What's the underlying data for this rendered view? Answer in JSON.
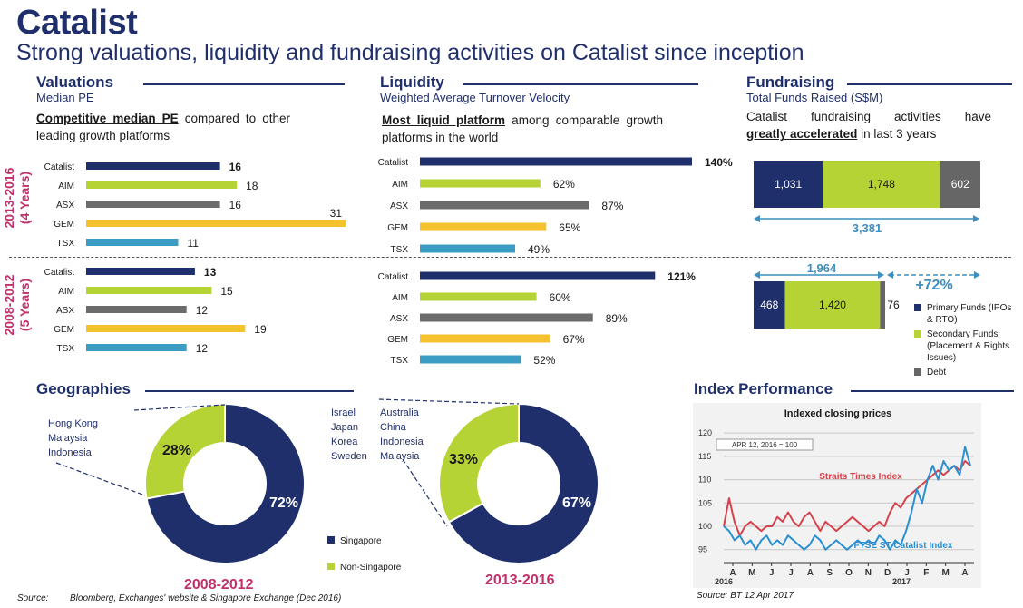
{
  "header": {
    "title": "Catalist",
    "subtitle": "Strong valuations, liquidity and fundraising activities on Catalist since inception"
  },
  "periods": {
    "recent": "2013-2016",
    "recent_years": "(4 Years)",
    "past": "2008-2012",
    "past_years": "(5 Years)"
  },
  "valuations": {
    "heading": "Valuations",
    "sub": "Median PE",
    "desc_bold": "Competitive median PE",
    "desc_rest": " compared to other leading growth platforms"
  },
  "liquidity": {
    "heading": "Liquidity",
    "sub": "Weighted Average Turnover Velocity",
    "desc_bold": "Most liquid platform",
    "desc_rest": " among comparable growth platforms in the world"
  },
  "fundraising": {
    "heading": "Fundraising",
    "sub": "Total Funds Raised (S$M)",
    "desc_pre": "Catalist fundraising activities have",
    "desc_bold": "greatly accelerated",
    "desc_rest": " in last 3 years",
    "legend": [
      {
        "label": "Primary Funds (IPOs & RTO)",
        "color": "#1f2f6b"
      },
      {
        "label": "Secondary Funds (Placement & Rights Issues)",
        "color": "#b5d334"
      },
      {
        "label": "Debt",
        "color": "#666666"
      }
    ]
  },
  "geographies": {
    "heading": "Geographies",
    "list_2012": [
      "Hong Kong",
      "Malaysia",
      "Indonesia"
    ],
    "list_2016_a": [
      "Israel",
      "Japan",
      "Korea",
      "Sweden"
    ],
    "list_2016_b": [
      "Australia",
      "China",
      "Indonesia",
      "Malaysia"
    ],
    "legend": [
      {
        "label": "Singapore",
        "color": "#1f2f6b"
      },
      {
        "label": "Non-Singapore",
        "color": "#b5d334"
      }
    ]
  },
  "index_perf": {
    "heading": "Index Performance",
    "source": "Source: BT 12 Apr 2017"
  },
  "source": {
    "label": "Source:",
    "text": "Bloomberg, Exchanges' website & Singapore Exchange (Dec 2016)"
  },
  "chart_data": [
    {
      "id": "pe-2013-2016",
      "type": "bar",
      "orientation": "horizontal",
      "title": "Median PE 2013-2016",
      "categories": [
        "Catalist",
        "AIM",
        "ASX",
        "GEM",
        "TSX"
      ],
      "values": [
        16,
        18,
        16,
        31,
        11
      ],
      "colors": [
        "#1f2f6b",
        "#b5d334",
        "#6b6b6b",
        "#f5c22e",
        "#3b9dc4"
      ],
      "value_labels": [
        "16",
        "18",
        "16",
        "31",
        "11"
      ],
      "xlim": [
        0,
        31
      ]
    },
    {
      "id": "pe-2008-2012",
      "type": "bar",
      "orientation": "horizontal",
      "title": "Median PE 2008-2012",
      "categories": [
        "Catalist",
        "AIM",
        "ASX",
        "GEM",
        "TSX"
      ],
      "values": [
        13,
        15,
        12,
        19,
        12
      ],
      "colors": [
        "#1f2f6b",
        "#b5d334",
        "#6b6b6b",
        "#f5c22e",
        "#3b9dc4"
      ],
      "value_labels": [
        "13",
        "15",
        "12",
        "19",
        "12"
      ],
      "xlim": [
        0,
        31
      ]
    },
    {
      "id": "tv-2013-2016",
      "type": "bar",
      "orientation": "horizontal",
      "title": "Turnover Velocity 2013-2016",
      "categories": [
        "Catalist",
        "AIM",
        "ASX",
        "GEM",
        "TSX"
      ],
      "values": [
        140,
        62,
        87,
        65,
        49
      ],
      "colors": [
        "#1f2f6b",
        "#b5d334",
        "#6b6b6b",
        "#f5c22e",
        "#3b9dc4"
      ],
      "value_labels": [
        "140%",
        "62%",
        "87%",
        "65%",
        "49%"
      ],
      "xlim": [
        0,
        140
      ]
    },
    {
      "id": "tv-2008-2012",
      "type": "bar",
      "orientation": "horizontal",
      "title": "Turnover Velocity 2008-2012",
      "categories": [
        "Catalist",
        "AIM",
        "ASX",
        "GEM",
        "TSX"
      ],
      "values": [
        121,
        60,
        89,
        67,
        52
      ],
      "colors": [
        "#1f2f6b",
        "#b5d334",
        "#6b6b6b",
        "#f5c22e",
        "#3b9dc4"
      ],
      "value_labels": [
        "121%",
        "60%",
        "89%",
        "67%",
        "52%"
      ],
      "xlim": [
        0,
        140
      ]
    },
    {
      "id": "funds-2013-2016",
      "type": "bar",
      "orientation": "stacked-horizontal",
      "series": [
        {
          "name": "Primary Funds",
          "value": 1031,
          "label": "1,031",
          "color": "#1f2f6b"
        },
        {
          "name": "Secondary Funds",
          "value": 1748,
          "label": "1,748",
          "color": "#b5d334"
        },
        {
          "name": "Debt",
          "value": 602,
          "label": "602",
          "color": "#666666"
        }
      ],
      "total_label": "3,381"
    },
    {
      "id": "funds-2008-2012",
      "type": "bar",
      "orientation": "stacked-horizontal",
      "series": [
        {
          "name": "Primary Funds",
          "value": 468,
          "label": "468",
          "color": "#1f2f6b"
        },
        {
          "name": "Secondary Funds",
          "value": 1420,
          "label": "1,420",
          "color": "#b5d334"
        },
        {
          "name": "Debt",
          "value": 76,
          "label": "76",
          "color": "#666666"
        }
      ],
      "total_label": "1,964",
      "growth_label": "+72%"
    },
    {
      "id": "geo-2008-2012",
      "type": "pie",
      "title": "2008-2012",
      "labels": [
        "Singapore",
        "Non-Singapore"
      ],
      "values": [
        72,
        28
      ],
      "value_labels": [
        "72%",
        "28%"
      ],
      "colors": [
        "#1f2f6b",
        "#b5d334"
      ]
    },
    {
      "id": "geo-2013-2016",
      "type": "pie",
      "title": "2013-2016",
      "labels": [
        "Singapore",
        "Non-Singapore"
      ],
      "values": [
        67,
        33
      ],
      "value_labels": [
        "67%",
        "33%"
      ],
      "colors": [
        "#1f2f6b",
        "#b5d334"
      ]
    },
    {
      "id": "index-performance",
      "type": "line",
      "title": "Indexed closing prices",
      "annotation": "APR 12, 2016 = 100",
      "x_ticks": [
        "A",
        "M",
        "J",
        "J",
        "A",
        "S",
        "O",
        "N",
        "D",
        "J",
        "F",
        "M",
        "A"
      ],
      "x_year_labels": [
        "2016",
        "2017"
      ],
      "y_ticks": [
        95,
        100,
        105,
        110,
        115,
        120
      ],
      "ylim": [
        93,
        121
      ],
      "series": [
        {
          "name": "Straits Times Index",
          "color": "#d6424b",
          "values": [
            100,
            106,
            101,
            98,
            100,
            101,
            100,
            99,
            100,
            100,
            102,
            101,
            103,
            101,
            100,
            102,
            103,
            101,
            99,
            101,
            100,
            99,
            100,
            101,
            102,
            101,
            100,
            99,
            100,
            101,
            100,
            103,
            105,
            104,
            106,
            107,
            108,
            109,
            110,
            111,
            112,
            111,
            112,
            113,
            112,
            114,
            113
          ]
        },
        {
          "name": "FTSE ST Catalist Index",
          "color": "#2a8fd0",
          "values": [
            100,
            99,
            97,
            98,
            96,
            97,
            95,
            97,
            98,
            96,
            97,
            96,
            98,
            97,
            96,
            95,
            96,
            98,
            97,
            95,
            96,
            97,
            96,
            95,
            96,
            97,
            96,
            97,
            96,
            98,
            97,
            95,
            97,
            96,
            99,
            103,
            108,
            105,
            110,
            113,
            110,
            114,
            112,
            113,
            111,
            117,
            113
          ]
        }
      ]
    }
  ]
}
